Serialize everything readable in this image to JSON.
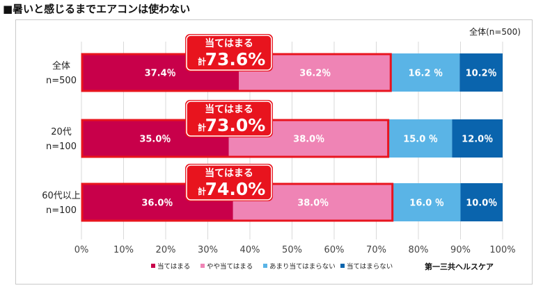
{
  "page_title": "■暑いと感じるまでエアコンは使わない",
  "note": "全体(n=500)",
  "brand": "第一三共ヘルスケア",
  "colors": {
    "apply": "#c8004a",
    "somewhat_apply": "#ef84b5",
    "somewhat_not_apply": "#5ab4e6",
    "not_apply": "#0a64ad",
    "callout": "#e8141e"
  },
  "chart_data": {
    "type": "bar",
    "orientation": "horizontal-stacked-100",
    "categories": [
      {
        "label": "全体",
        "n": "n=500"
      },
      {
        "label": "20代",
        "n": "n=100"
      },
      {
        "label": "60代以上",
        "n": "n=100"
      }
    ],
    "series": [
      {
        "name": "当てはまる",
        "values": [
          37.4,
          35.0,
          36.0
        ],
        "labels": [
          "37.4％",
          "35.0％",
          "36.0％"
        ]
      },
      {
        "name": "やや当てはまる",
        "values": [
          36.2,
          38.0,
          38.0
        ],
        "labels": [
          "36.2％",
          "38.0％",
          "38.0％"
        ]
      },
      {
        "name": "あまり当てはまらない",
        "values": [
          16.2,
          15.0,
          16.0
        ],
        "labels": [
          "16.2 ％",
          "15.0 ％",
          "16.0 ％"
        ]
      },
      {
        "name": "当てはまらない",
        "values": [
          10.2,
          12.0,
          10.0
        ],
        "labels": [
          "10.2％",
          "12.0％",
          "10.0％"
        ]
      }
    ],
    "callouts": [
      {
        "heading": "当てはまる",
        "prefix": "計",
        "value": "73.6%",
        "total": 73.6
      },
      {
        "heading": "当てはまる",
        "prefix": "計",
        "value": "73.0%",
        "total": 73.0
      },
      {
        "heading": "当てはまる",
        "prefix": "計",
        "value": "74.0%",
        "total": 74.0
      }
    ],
    "x_ticks": [
      "0%",
      "10%",
      "20%",
      "30%",
      "40%",
      "50%",
      "60%",
      "70%",
      "80%",
      "90%",
      "100%"
    ],
    "xlim": [
      0,
      100
    ],
    "grid": true,
    "legend_position": "bottom"
  }
}
